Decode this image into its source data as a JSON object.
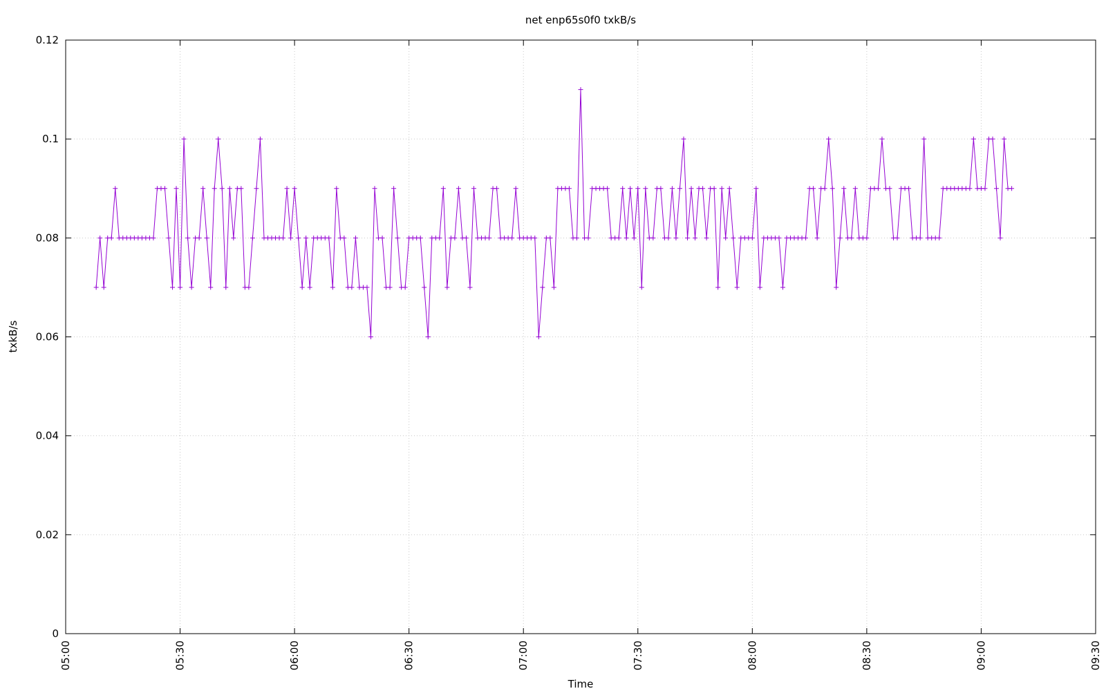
{
  "chart_data": {
    "type": "line",
    "title": "net enp65s0f0 txkB/s",
    "x_label": "Time",
    "y_label": "txkB/s",
    "color": "#9400d3",
    "grid": true,
    "xlim": [
      "05:00",
      "09:30"
    ],
    "xticks": [
      "05:00",
      "05:30",
      "06:00",
      "06:30",
      "07:00",
      "07:30",
      "08:00",
      "08:30",
      "09:00",
      "09:30"
    ],
    "ylim": [
      0,
      0.12
    ],
    "yticks": [
      0,
      0.02,
      0.04,
      0.06,
      0.08,
      0.1,
      0.12
    ],
    "x": [
      "05:08",
      "05:09",
      "05:10",
      "05:11",
      "05:12",
      "05:13",
      "05:14",
      "05:15",
      "05:16",
      "05:17",
      "05:18",
      "05:19",
      "05:20",
      "05:21",
      "05:22",
      "05:23",
      "05:24",
      "05:25",
      "05:26",
      "05:27",
      "05:28",
      "05:29",
      "05:30",
      "05:31",
      "05:32",
      "05:33",
      "05:34",
      "05:35",
      "05:36",
      "05:37",
      "05:38",
      "05:39",
      "05:40",
      "05:41",
      "05:42",
      "05:43",
      "05:44",
      "05:45",
      "05:46",
      "05:47",
      "05:48",
      "05:49",
      "05:50",
      "05:51",
      "05:52",
      "05:53",
      "05:54",
      "05:55",
      "05:56",
      "05:57",
      "05:58",
      "05:59",
      "06:00",
      "06:01",
      "06:02",
      "06:03",
      "06:04",
      "06:05",
      "06:06",
      "06:07",
      "06:08",
      "06:09",
      "06:10",
      "06:11",
      "06:12",
      "06:13",
      "06:14",
      "06:15",
      "06:16",
      "06:17",
      "06:18",
      "06:19",
      "06:20",
      "06:21",
      "06:22",
      "06:23",
      "06:24",
      "06:25",
      "06:26",
      "06:27",
      "06:28",
      "06:29",
      "06:30",
      "06:31",
      "06:32",
      "06:33",
      "06:34",
      "06:35",
      "06:36",
      "06:37",
      "06:38",
      "06:39",
      "06:40",
      "06:41",
      "06:42",
      "06:43",
      "06:44",
      "06:45",
      "06:46",
      "06:47",
      "06:48",
      "06:49",
      "06:50",
      "06:51",
      "06:52",
      "06:53",
      "06:54",
      "06:55",
      "06:56",
      "06:57",
      "06:58",
      "06:59",
      "07:00",
      "07:01",
      "07:02",
      "07:03",
      "07:04",
      "07:05",
      "07:06",
      "07:07",
      "07:08",
      "07:09",
      "07:10",
      "07:11",
      "07:12",
      "07:13",
      "07:14",
      "07:15",
      "07:16",
      "07:17",
      "07:18",
      "07:19",
      "07:20",
      "07:21",
      "07:22",
      "07:23",
      "07:24",
      "07:25",
      "07:26",
      "07:27",
      "07:28",
      "07:29",
      "07:30",
      "07:31",
      "07:32",
      "07:33",
      "07:34",
      "07:35",
      "07:36",
      "07:37",
      "07:38",
      "07:39",
      "07:40",
      "07:41",
      "07:42",
      "07:43",
      "07:44",
      "07:45",
      "07:46",
      "07:47",
      "07:48",
      "07:49",
      "07:50",
      "07:51",
      "07:52",
      "07:53",
      "07:54",
      "07:55",
      "07:56",
      "07:57",
      "07:58",
      "07:59",
      "08:00",
      "08:01",
      "08:02",
      "08:03",
      "08:04",
      "08:05",
      "08:06",
      "08:07",
      "08:08",
      "08:09",
      "08:10",
      "08:11",
      "08:12",
      "08:13",
      "08:14",
      "08:15",
      "08:16",
      "08:17",
      "08:18",
      "08:19",
      "08:20",
      "08:21",
      "08:22",
      "08:23",
      "08:24",
      "08:25",
      "08:26",
      "08:27",
      "08:28",
      "08:29",
      "08:30",
      "08:31",
      "08:32",
      "08:33",
      "08:34",
      "08:35",
      "08:36",
      "08:37",
      "08:38",
      "08:39",
      "08:40",
      "08:41",
      "08:42",
      "08:43",
      "08:44",
      "08:45",
      "08:46",
      "08:47",
      "08:48",
      "08:49",
      "08:50",
      "08:51",
      "08:52",
      "08:53",
      "08:54",
      "08:55",
      "08:56",
      "08:57",
      "08:58",
      "08:59",
      "09:00",
      "09:01",
      "09:02",
      "09:03",
      "09:04",
      "09:05",
      "09:06",
      "09:07",
      "09:08"
    ],
    "values": [
      0.07,
      0.08,
      0.07,
      0.08,
      0.08,
      0.09,
      0.08,
      0.08,
      0.08,
      0.08,
      0.08,
      0.08,
      0.08,
      0.08,
      0.08,
      0.08,
      0.09,
      0.09,
      0.09,
      0.08,
      0.07,
      0.09,
      0.07,
      0.1,
      0.08,
      0.07,
      0.08,
      0.08,
      0.09,
      0.08,
      0.07,
      0.09,
      0.1,
      0.09,
      0.07,
      0.09,
      0.08,
      0.09,
      0.09,
      0.07,
      0.07,
      0.08,
      0.09,
      0.1,
      0.08,
      0.08,
      0.08,
      0.08,
      0.08,
      0.08,
      0.09,
      0.08,
      0.09,
      0.08,
      0.07,
      0.08,
      0.07,
      0.08,
      0.08,
      0.08,
      0.08,
      0.08,
      0.07,
      0.09,
      0.08,
      0.08,
      0.07,
      0.07,
      0.08,
      0.07,
      0.07,
      0.07,
      0.06,
      0.09,
      0.08,
      0.08,
      0.07,
      0.07,
      0.09,
      0.08,
      0.07,
      0.07,
      0.08,
      0.08,
      0.08,
      0.08,
      0.07,
      0.06,
      0.08,
      0.08,
      0.08,
      0.09,
      0.07,
      0.08,
      0.08,
      0.09,
      0.08,
      0.08,
      0.07,
      0.09,
      0.08,
      0.08,
      0.08,
      0.08,
      0.09,
      0.09,
      0.08,
      0.08,
      0.08,
      0.08,
      0.09,
      0.08,
      0.08,
      0.08,
      0.08,
      0.08,
      0.06,
      0.07,
      0.08,
      0.08,
      0.07,
      0.09,
      0.09,
      0.09,
      0.09,
      0.08,
      0.08,
      0.11,
      0.08,
      0.08,
      0.09,
      0.09,
      0.09,
      0.09,
      0.09,
      0.08,
      0.08,
      0.08,
      0.09,
      0.08,
      0.09,
      0.08,
      0.09,
      0.07,
      0.09,
      0.08,
      0.08,
      0.09,
      0.09,
      0.08,
      0.08,
      0.09,
      0.08,
      0.09,
      0.1,
      0.08,
      0.09,
      0.08,
      0.09,
      0.09,
      0.08,
      0.09,
      0.09,
      0.07,
      0.09,
      0.08,
      0.09,
      0.08,
      0.07,
      0.08,
      0.08,
      0.08,
      0.08,
      0.09,
      0.07,
      0.08,
      0.08,
      0.08,
      0.08,
      0.08,
      0.07,
      0.08,
      0.08,
      0.08,
      0.08,
      0.08,
      0.08,
      0.09,
      0.09,
      0.08,
      0.09,
      0.09,
      0.1,
      0.09,
      0.07,
      0.08,
      0.09,
      0.08,
      0.08,
      0.09,
      0.08,
      0.08,
      0.08,
      0.09,
      0.09,
      0.09,
      0.1,
      0.09,
      0.09,
      0.08,
      0.08,
      0.09,
      0.09,
      0.09,
      0.08,
      0.08,
      0.08,
      0.1,
      0.08,
      0.08,
      0.08,
      0.08,
      0.09,
      0.09,
      0.09,
      0.09,
      0.09,
      0.09,
      0.09,
      0.09,
      0.1,
      0.09,
      0.09,
      0.09,
      0.1,
      0.1,
      0.09,
      0.08,
      0.1,
      0.09,
      0.09
    ]
  }
}
